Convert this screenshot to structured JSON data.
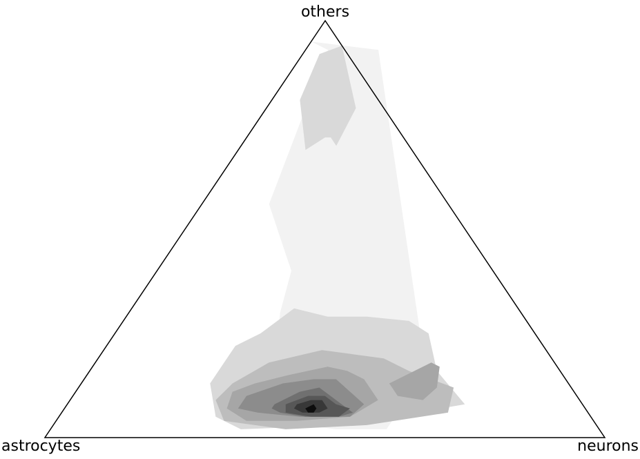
{
  "chart_data": {
    "type": "ternary-density-contour",
    "title": "",
    "vertices": {
      "top": "others",
      "left": "astrocytes",
      "right": "neurons"
    },
    "colormap": "greys",
    "grid": false,
    "legend": "none",
    "levels": [
      {
        "level": 1,
        "color": "#f2f2f2",
        "polygons": [
          [
            [
              0.0,
              0.95
            ],
            [
              0.04,
              0.93
            ],
            [
              0.12,
              0.56
            ],
            [
              0.24,
              0.4
            ],
            [
              0.27,
              0.3
            ],
            [
              0.38,
              0.04
            ],
            [
              0.51,
              0.02
            ],
            [
              0.6,
              0.02
            ],
            [
              0.6,
              0.16
            ],
            [
              0.13,
              0.93
            ]
          ]
        ]
      },
      {
        "level": 2,
        "color": "#d9d9d9",
        "polygons": [
          [
            [
              0.06,
              0.94
            ],
            [
              0.03,
              0.92
            ],
            [
              0.05,
              0.81
            ],
            [
              0.12,
              0.69
            ],
            [
              0.14,
              0.72
            ],
            [
              0.15,
              0.72
            ],
            [
              0.17,
              0.7
            ],
            [
              0.16,
              0.79
            ]
          ],
          [
            [
              0.26,
              0.25
            ],
            [
              0.29,
              0.31
            ],
            [
              0.36,
              0.29
            ],
            [
              0.43,
              0.29
            ],
            [
              0.51,
              0.28
            ],
            [
              0.56,
              0.25
            ],
            [
              0.62,
              0.16
            ],
            [
              0.71,
              0.08
            ],
            [
              0.52,
              0.03
            ],
            [
              0.34,
              0.02
            ],
            [
              0.28,
              0.05
            ],
            [
              0.23,
              0.13
            ],
            [
              0.23,
              0.22
            ]
          ]
        ]
      },
      {
        "level": 3,
        "color": "#bdbdbd",
        "polygons": [
          [
            [
              0.27,
              0.13
            ],
            [
              0.31,
              0.18
            ],
            [
              0.39,
              0.21
            ],
            [
              0.45,
              0.2
            ],
            [
              0.51,
              0.19
            ],
            [
              0.57,
              0.16
            ],
            [
              0.67,
              0.12
            ],
            [
              0.69,
              0.06
            ],
            [
              0.56,
              0.03
            ],
            [
              0.42,
              0.02
            ],
            [
              0.3,
              0.04
            ],
            [
              0.26,
              0.09
            ]
          ]
        ]
      },
      {
        "level": 4,
        "color": "#a6a6a6",
        "polygons": [
          [
            [
              0.31,
              0.13
            ],
            [
              0.36,
              0.15
            ],
            [
              0.42,
              0.17
            ],
            [
              0.46,
              0.16
            ],
            [
              0.5,
              0.14
            ],
            [
              0.55,
              0.09
            ],
            [
              0.52,
              0.05
            ],
            [
              0.43,
              0.04
            ],
            [
              0.34,
              0.04
            ],
            [
              0.29,
              0.07
            ],
            [
              0.28,
              0.11
            ]
          ],
          [
            [
              0.55,
              0.13
            ],
            [
              0.6,
              0.18
            ],
            [
              0.62,
              0.17
            ],
            [
              0.64,
              0.12
            ],
            [
              0.63,
              0.09
            ],
            [
              0.58,
              0.1
            ],
            [
              0.56,
              0.12
            ]
          ]
        ]
      },
      {
        "level": 5,
        "color": "#8c8c8c",
        "polygons": [
          [
            [
              0.31,
              0.1
            ],
            [
              0.36,
              0.13
            ],
            [
              0.41,
              0.14
            ],
            [
              0.45,
              0.14
            ],
            [
              0.49,
              0.11
            ],
            [
              0.53,
              0.08
            ],
            [
              0.52,
              0.05
            ],
            [
              0.43,
              0.05
            ],
            [
              0.35,
              0.06
            ],
            [
              0.31,
              0.07
            ]
          ]
        ]
      },
      {
        "level": 6,
        "color": "#707070",
        "polygons": [
          [
            [
              0.37,
              0.08
            ],
            [
              0.4,
              0.11
            ],
            [
              0.43,
              0.12
            ],
            [
              0.46,
              0.1
            ],
            [
              0.49,
              0.08
            ],
            [
              0.52,
              0.06
            ],
            [
              0.5,
              0.05
            ],
            [
              0.44,
              0.05
            ],
            [
              0.39,
              0.06
            ],
            [
              0.37,
              0.07
            ]
          ]
        ]
      },
      {
        "level": 7,
        "color": "#575757",
        "polygons": [
          [
            [
              0.39,
              0.08
            ],
            [
              0.42,
              0.1
            ],
            [
              0.45,
              0.1
            ],
            [
              0.48,
              0.08
            ],
            [
              0.51,
              0.07
            ],
            [
              0.5,
              0.05
            ],
            [
              0.45,
              0.05
            ],
            [
              0.4,
              0.06
            ]
          ]
        ]
      },
      {
        "level": 8,
        "color": "#383838",
        "polygons": [
          [
            [
              0.41,
              0.08
            ],
            [
              0.43,
              0.09
            ],
            [
              0.45,
              0.09
            ],
            [
              0.47,
              0.07
            ],
            [
              0.46,
              0.06
            ],
            [
              0.43,
              0.06
            ],
            [
              0.41,
              0.07
            ]
          ]
        ]
      },
      {
        "level": 9,
        "color": "#0d0d0d",
        "polygons": [
          [
            [
              0.43,
              0.07
            ],
            [
              0.44,
              0.08
            ],
            [
              0.45,
              0.07
            ],
            [
              0.45,
              0.06
            ],
            [
              0.44,
              0.06
            ]
          ]
        ]
      }
    ]
  }
}
